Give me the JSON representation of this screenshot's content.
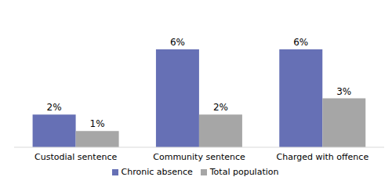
{
  "chart_data": {
    "type": "bar",
    "categories": [
      "Custodial sentence",
      "Community sentence",
      "Charged with offence"
    ],
    "series": [
      {
        "name": "Chronic absence",
        "color": "#6670b5",
        "values": [
          2,
          6,
          6
        ],
        "value_labels": [
          "2%",
          "6%",
          "6%"
        ]
      },
      {
        "name": "Total population",
        "color": "#a6a6a6",
        "values": [
          1,
          2,
          3
        ],
        "value_labels": [
          "1%",
          "2%",
          "3%"
        ]
      }
    ],
    "data_labels": true,
    "legend": "bottom",
    "grid": false,
    "tick_labels": "x"
  }
}
